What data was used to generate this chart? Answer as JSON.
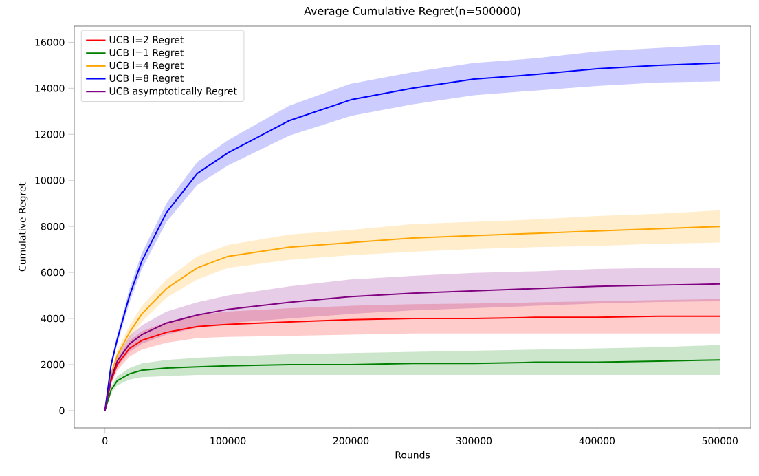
{
  "chart_data": {
    "type": "line",
    "title": "Average Cumulative Regret(n=500000)",
    "xlabel": "Rounds",
    "ylabel": "Cumulative Regret",
    "x": [
      0,
      5000,
      10000,
      20000,
      30000,
      50000,
      75000,
      100000,
      150000,
      200000,
      250000,
      300000,
      350000,
      400000,
      450000,
      500000
    ],
    "series": [
      {
        "name": "UCB l=2 Regret",
        "color": "#ff0000",
        "values": [
          0,
          1300,
          2000,
          2700,
          3050,
          3400,
          3650,
          3750,
          3850,
          3950,
          4000,
          4000,
          4050,
          4050,
          4100,
          4100
        ],
        "lower": [
          0,
          1150,
          1750,
          2350,
          2650,
          2950,
          3150,
          3200,
          3250,
          3300,
          3350,
          3350,
          3350,
          3350,
          3350,
          3350
        ],
        "upper": [
          0,
          1450,
          2250,
          3050,
          3450,
          3850,
          4150,
          4300,
          4450,
          4550,
          4620,
          4650,
          4700,
          4750,
          4800,
          4850
        ]
      },
      {
        "name": "UCB l=1 Regret",
        "color": "#008000",
        "values": [
          0,
          900,
          1300,
          1600,
          1750,
          1850,
          1900,
          1950,
          2000,
          2000,
          2050,
          2050,
          2100,
          2100,
          2150,
          2200
        ],
        "lower": [
          0,
          750,
          1100,
          1350,
          1450,
          1500,
          1550,
          1550,
          1550,
          1550,
          1550,
          1550,
          1550,
          1550,
          1550,
          1550
        ],
        "upper": [
          0,
          1050,
          1500,
          1850,
          2050,
          2200,
          2300,
          2350,
          2450,
          2500,
          2550,
          2600,
          2650,
          2700,
          2750,
          2850
        ]
      },
      {
        "name": "UCB l=4 Regret",
        "color": "#ffa500",
        "values": [
          0,
          1600,
          2400,
          3400,
          4200,
          5300,
          6200,
          6700,
          7100,
          7300,
          7500,
          7600,
          7700,
          7800,
          7900,
          8000
        ],
        "lower": [
          0,
          1450,
          2200,
          3100,
          3850,
          4900,
          5700,
          6200,
          6550,
          6750,
          6900,
          7020,
          7100,
          7150,
          7250,
          7300
        ],
        "upper": [
          0,
          1750,
          2600,
          3700,
          4550,
          5700,
          6700,
          7200,
          7650,
          7850,
          8100,
          8200,
          8300,
          8450,
          8550,
          8700
        ]
      },
      {
        "name": "UCB l=8 Regret",
        "color": "#0000ff",
        "values": [
          0,
          2000,
          3100,
          5000,
          6500,
          8600,
          10300,
          11200,
          12600,
          13500,
          14000,
          14400,
          14600,
          14850,
          15000,
          15100
        ],
        "lower": [
          0,
          1850,
          2900,
          4700,
          6150,
          8200,
          9800,
          10650,
          11950,
          12800,
          13300,
          13700,
          13900,
          14100,
          14250,
          14300
        ],
        "upper": [
          0,
          2150,
          3300,
          5300,
          6850,
          9000,
          10800,
          11750,
          13250,
          14200,
          14700,
          15100,
          15300,
          15600,
          15750,
          15900
        ]
      },
      {
        "name": "UCB asymptotically Regret",
        "color": "#800080",
        "values": [
          0,
          1400,
          2150,
          2900,
          3300,
          3800,
          4150,
          4400,
          4700,
          4950,
          5100,
          5200,
          5300,
          5400,
          5450,
          5500
        ],
        "lower": [
          0,
          1250,
          1900,
          2550,
          2900,
          3300,
          3600,
          3800,
          4000,
          4200,
          4350,
          4450,
          4550,
          4650,
          4720,
          4750
        ],
        "upper": [
          0,
          1550,
          2400,
          3250,
          3700,
          4300,
          4700,
          5000,
          5400,
          5700,
          5850,
          5980,
          6050,
          6150,
          6200,
          6200
        ]
      }
    ],
    "xlim": [
      -25000,
      525000
    ],
    "ylim": [
      -750,
      16700
    ],
    "xticks": [
      0,
      100000,
      200000,
      300000,
      400000,
      500000
    ],
    "yticks": [
      0,
      2000,
      4000,
      6000,
      8000,
      10000,
      12000,
      14000,
      16000
    ],
    "legend": "top left",
    "grid": false,
    "marker": "none",
    "line_style": "solid"
  }
}
